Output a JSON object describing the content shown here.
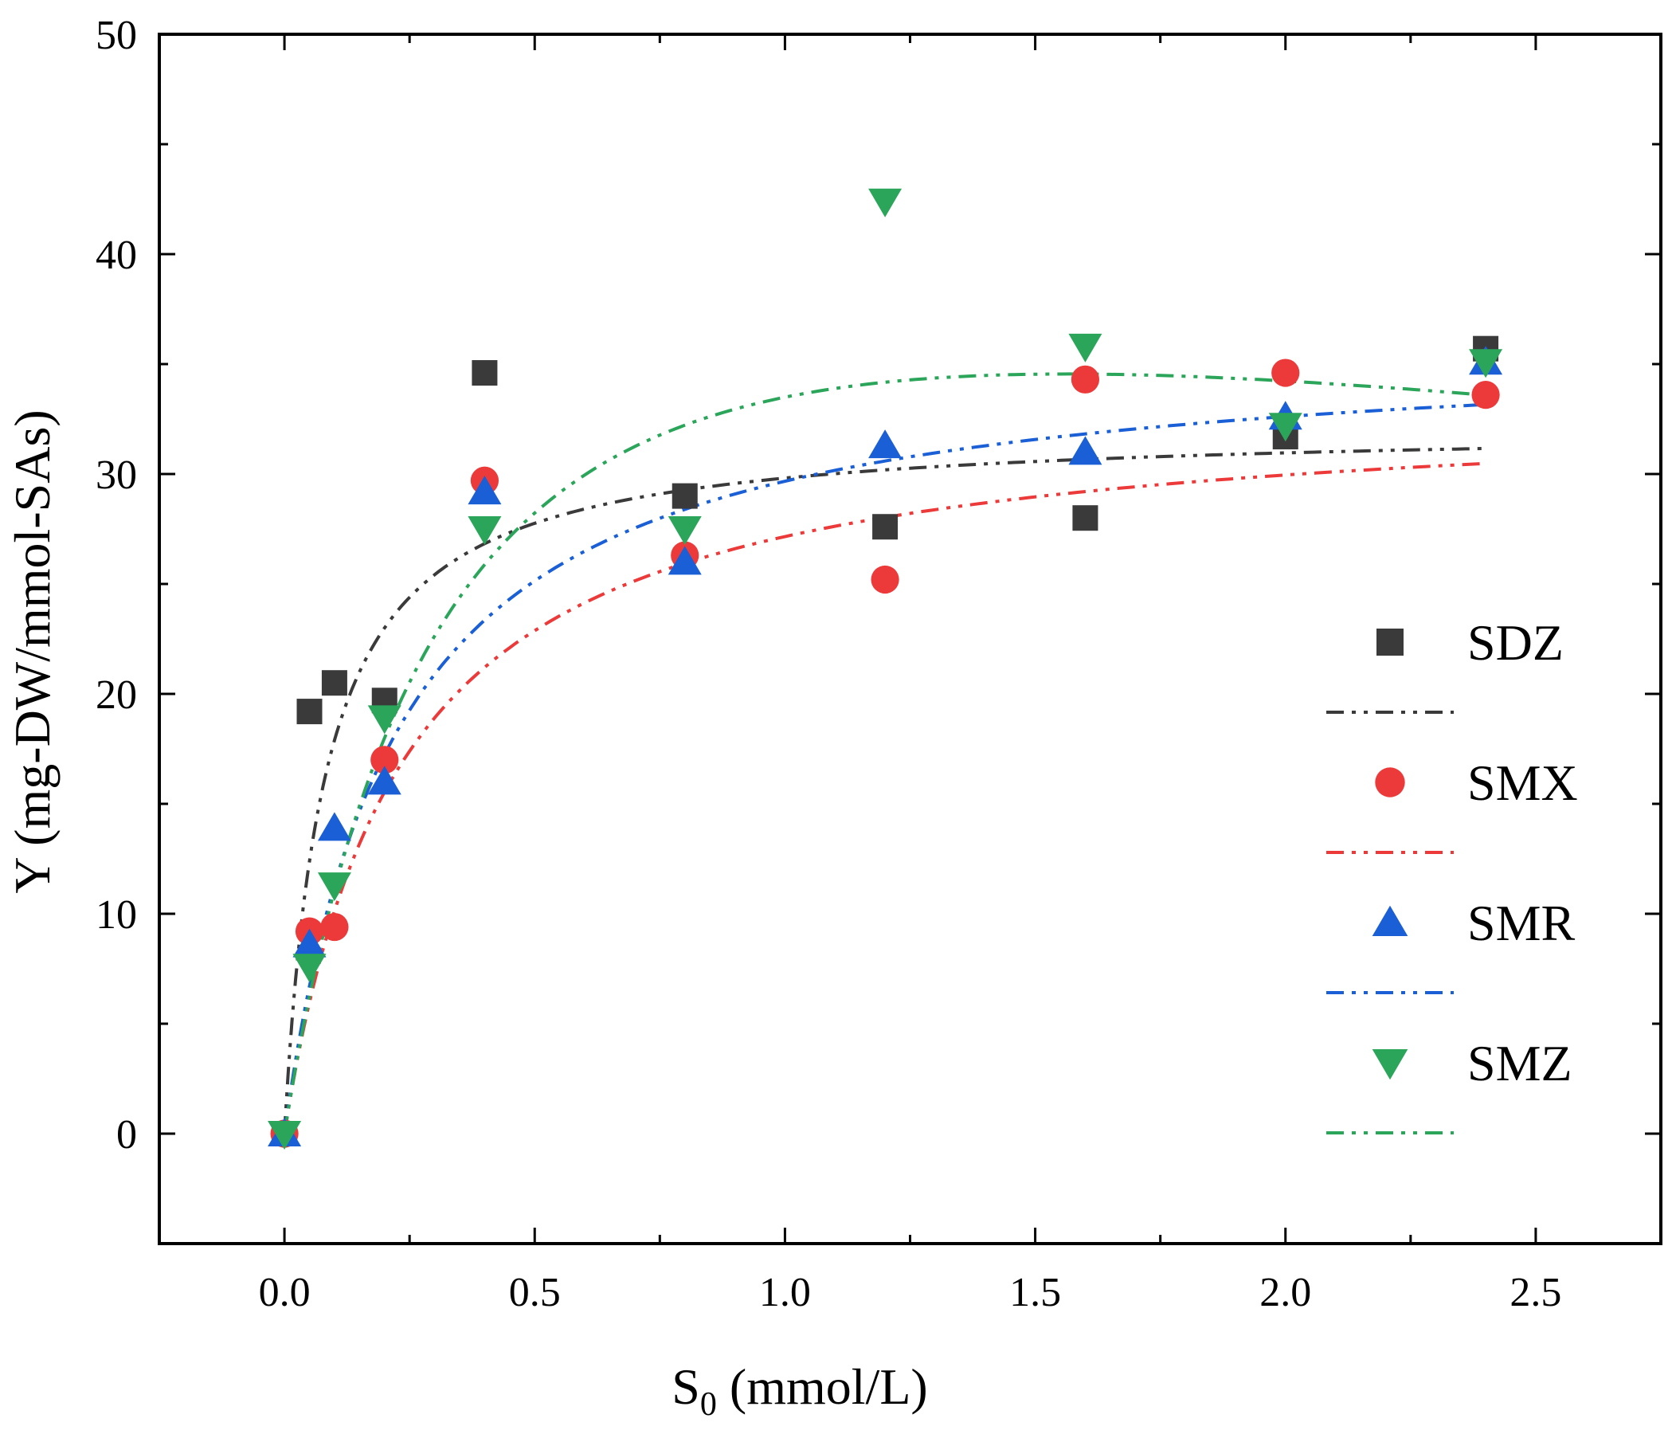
{
  "chart_data": {
    "type": "scatter",
    "title": "",
    "xlabel": "S",
    "xlabel_sub": "0",
    "xlabel_rest": " (mmol/L)",
    "ylabel": "Y (mg-DW/mmol-SAs)",
    "xlim": [
      -0.25,
      2.75
    ],
    "ylim": [
      -5,
      50
    ],
    "xticks": [
      "0.0",
      "0.5",
      "1.0",
      "1.5",
      "2.0",
      "2.5"
    ],
    "xtick_values": [
      0,
      0.5,
      1.0,
      1.5,
      2.0,
      2.5
    ],
    "yticks": [
      "0",
      "10",
      "20",
      "30",
      "40",
      "50"
    ],
    "ytick_values": [
      0,
      10,
      20,
      30,
      40,
      50
    ],
    "legend_position": "right",
    "series": [
      {
        "name": "SDZ",
        "marker": "square",
        "color": "#3a3a3a",
        "x": [
          0,
          0.05,
          0.1,
          0.2,
          0.4,
          0.8,
          1.2,
          1.6,
          2.0,
          2.4
        ],
        "y": [
          0,
          19.2,
          20.5,
          19.7,
          34.6,
          29.0,
          27.6,
          28.0,
          31.7,
          35.7
        ],
        "fit": {
          "model": "Monod",
          "ymax": 32.2,
          "ks": 0.08
        }
      },
      {
        "name": "SMX",
        "marker": "circle",
        "color": "#ec3a3a",
        "x": [
          0,
          0.05,
          0.1,
          0.2,
          0.4,
          0.8,
          1.2,
          1.6,
          2.0,
          2.4
        ],
        "y": [
          0,
          9.2,
          9.4,
          17.0,
          29.7,
          26.3,
          25.2,
          34.3,
          34.6,
          33.6
        ],
        "fit": {
          "model": "Monod",
          "ymax": 33.4,
          "ks": 0.23
        }
      },
      {
        "name": "SMR",
        "marker": "triangle-up",
        "color": "#1a5fd6",
        "x": [
          0,
          0.05,
          0.1,
          0.2,
          0.4,
          0.8,
          1.2,
          1.6,
          2.0,
          2.4
        ],
        "y": [
          0,
          8.6,
          13.9,
          16.0,
          29.2,
          26.0,
          31.3,
          31.0,
          32.6,
          35.1
        ],
        "fit": {
          "model": "Monod",
          "ymax": 36.2,
          "ks": 0.22
        }
      },
      {
        "name": "SMZ",
        "marker": "triangle-down",
        "color": "#2aa55a",
        "x": [
          0,
          0.05,
          0.1,
          0.2,
          0.4,
          0.8,
          1.2,
          1.6,
          2.0,
          2.4
        ],
        "y": [
          0,
          7.6,
          11.3,
          18.9,
          27.5,
          27.5,
          42.4,
          35.8,
          32.2,
          35.1
        ],
        "fit": {
          "model": "Haldane",
          "ymax": 50,
          "ks": 0.35,
          "ki": 7.0
        }
      }
    ]
  }
}
